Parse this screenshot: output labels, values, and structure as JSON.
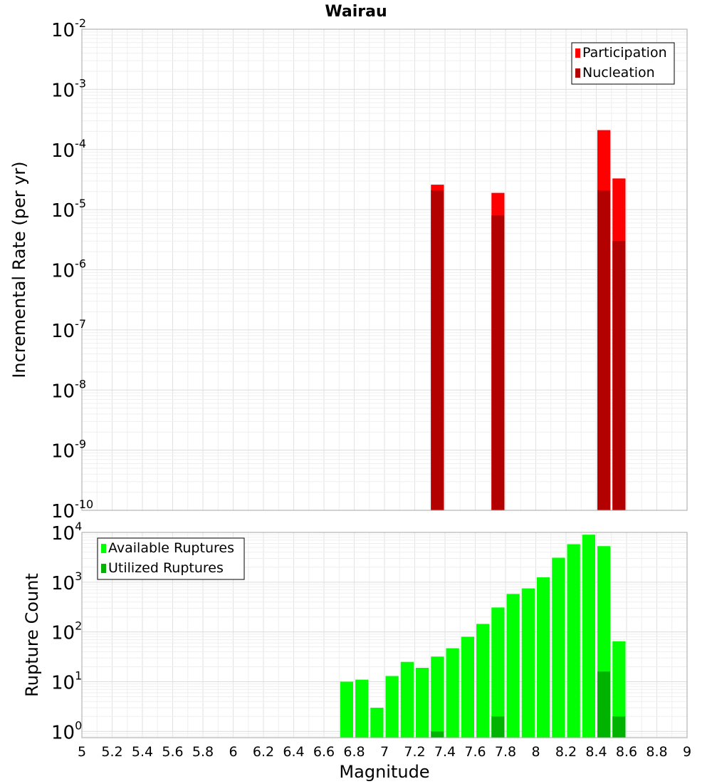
{
  "title": "Wairau",
  "chart_data": [
    {
      "type": "bar",
      "ylabel": "Incremental Rate (per yr)",
      "yscale": "log",
      "ylim": [
        1e-10,
        0.01
      ],
      "xlim": [
        5,
        9
      ],
      "bar_width": 0.1,
      "y_ticks": [
        {
          "base": "10",
          "exp": "-2",
          "value": 0.01
        },
        {
          "base": "10",
          "exp": "-3",
          "value": 0.001
        },
        {
          "base": "10",
          "exp": "-4",
          "value": 0.0001
        },
        {
          "base": "10",
          "exp": "-5",
          "value": 1e-05
        },
        {
          "base": "10",
          "exp": "-6",
          "value": 1e-06
        },
        {
          "base": "10",
          "exp": "-7",
          "value": 1e-07
        },
        {
          "base": "10",
          "exp": "-8",
          "value": 1e-08
        },
        {
          "base": "10",
          "exp": "-9",
          "value": 1e-09
        },
        {
          "base": "10",
          "exp": "-10",
          "value": 1e-10
        }
      ],
      "legend_position": "top-right",
      "grid": true,
      "series": [
        {
          "name": "Participation",
          "color": "#ff0000",
          "x": [
            7.35,
            7.75,
            8.45,
            8.55
          ],
          "values": [
            2.6e-05,
            1.9e-05,
            0.00021,
            3.3e-05
          ]
        },
        {
          "name": "Nucleation",
          "color": "#b30000",
          "x": [
            7.35,
            7.75,
            8.45,
            8.55
          ],
          "values": [
            2.1e-05,
            8e-06,
            2.1e-05,
            3e-06
          ]
        }
      ]
    },
    {
      "type": "bar",
      "ylabel": "Rupture Count",
      "xlabel": "Magnitude",
      "yscale": "log",
      "ylim": [
        0.75,
        10000
      ],
      "xlim": [
        5,
        9
      ],
      "bar_width": 0.1,
      "x_ticks": [
        "5",
        "5.2",
        "5.4",
        "5.6",
        "5.8",
        "6",
        "6.2",
        "6.4",
        "6.6",
        "6.8",
        "7",
        "7.2",
        "7.4",
        "7.6",
        "7.8",
        "8",
        "8.2",
        "8.4",
        "8.6",
        "8.8",
        "9"
      ],
      "y_ticks": [
        {
          "base": "10",
          "exp": "4",
          "value": 10000
        },
        {
          "base": "10",
          "exp": "3",
          "value": 1000
        },
        {
          "base": "10",
          "exp": "2",
          "value": 100
        },
        {
          "base": "10",
          "exp": "1",
          "value": 10
        },
        {
          "base": "10",
          "exp": "0",
          "value": 1
        }
      ],
      "legend_position": "top-left",
      "grid": true,
      "series": [
        {
          "name": "Available Ruptures",
          "color": "#00ff00",
          "x": [
            6.75,
            6.85,
            6.95,
            7.05,
            7.15,
            7.25,
            7.35,
            7.45,
            7.55,
            7.65,
            7.75,
            7.85,
            7.95,
            8.05,
            8.15,
            8.25,
            8.35,
            8.45,
            8.55
          ],
          "values": [
            10,
            11,
            3,
            13,
            25,
            19,
            32,
            47,
            80,
            145,
            310,
            580,
            750,
            1250,
            3100,
            5800,
            9000,
            5300,
            65
          ]
        },
        {
          "name": "Utilized Ruptures",
          "color": "#00b300",
          "x": [
            7.35,
            7.75,
            8.45,
            8.55
          ],
          "values": [
            1,
            2,
            16,
            2
          ]
        }
      ]
    }
  ]
}
